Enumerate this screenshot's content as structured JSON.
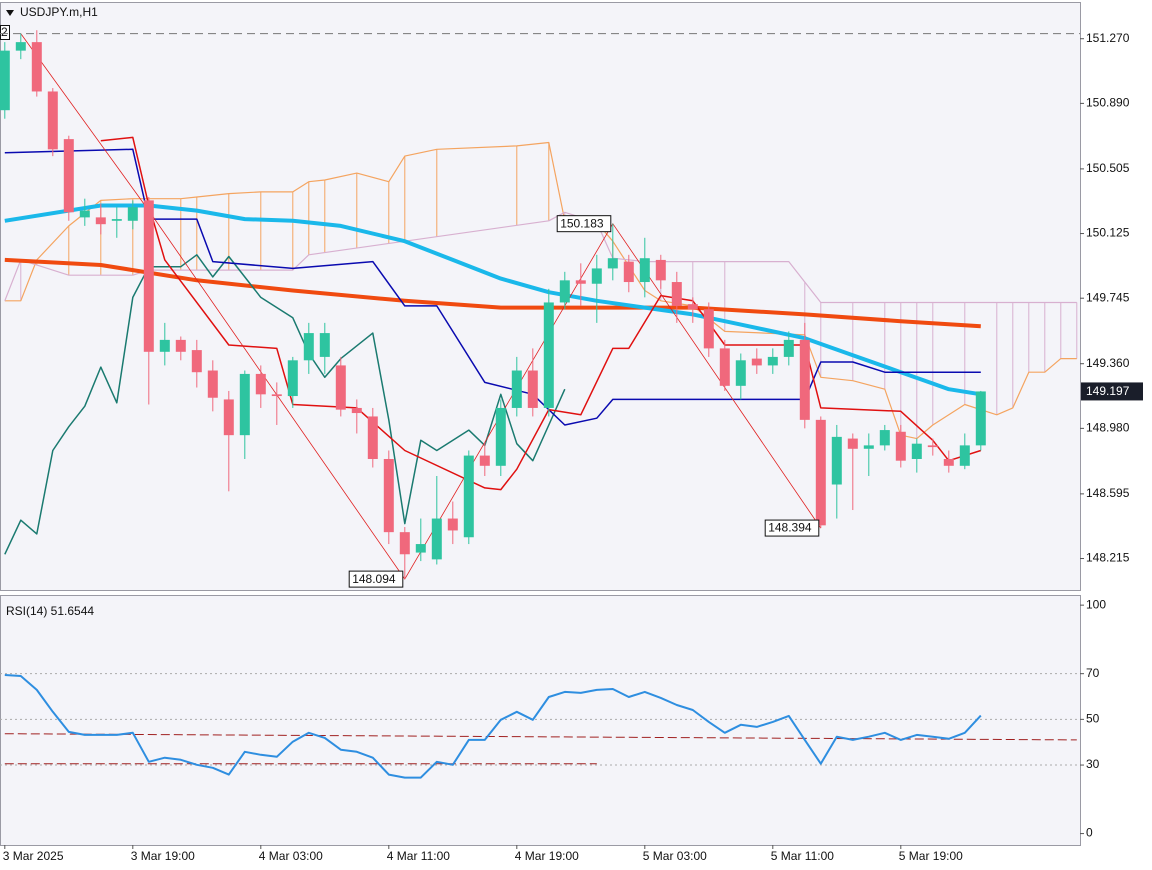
{
  "chart_data": [
    {
      "type": "candlestick",
      "title": "USDJPY.m,H1",
      "annotation": "2",
      "x": [
        0,
        1,
        2,
        3,
        4,
        5,
        6,
        7,
        8,
        9,
        10,
        11,
        12,
        13,
        14,
        15,
        16,
        17,
        18,
        19,
        20,
        21,
        22,
        23,
        24,
        25,
        26,
        27,
        28,
        29,
        30,
        31,
        32,
        33,
        34,
        35,
        36,
        37,
        38,
        39,
        40,
        41,
        42,
        43,
        44,
        45,
        46,
        47,
        48,
        49,
        50,
        51,
        52,
        53,
        54,
        55,
        56,
        57,
        58,
        59,
        60,
        61
      ],
      "open": [
        150.85,
        151.2,
        151.25,
        150.96,
        150.68,
        150.22,
        150.22,
        150.2,
        150.2,
        150.32,
        149.43,
        149.5,
        149.44,
        149.32,
        149.15,
        148.94,
        149.3,
        149.18,
        149.17,
        149.38,
        149.4,
        149.35,
        149.1,
        149.05,
        148.8,
        148.37,
        148.25,
        148.21,
        148.45,
        148.34,
        148.82,
        148.76,
        149.1,
        149.32,
        149.1,
        149.72,
        149.85,
        149.83,
        149.92,
        149.96,
        149.84,
        149.97,
        149.84,
        149.71,
        149.68,
        149.45,
        149.23,
        149.39,
        149.35,
        149.4,
        149.5,
        149.03,
        148.65,
        148.92,
        148.86,
        148.88,
        148.96,
        148.8,
        148.88,
        148.8,
        148.76,
        148.88
      ],
      "high": [
        151.25,
        151.3,
        151.32,
        150.98,
        150.7,
        150.33,
        150.3,
        150.28,
        150.32,
        150.34,
        149.6,
        149.52,
        149.5,
        149.38,
        149.2,
        149.32,
        149.35,
        149.25,
        149.4,
        149.6,
        149.6,
        149.4,
        149.15,
        149.1,
        148.85,
        148.4,
        148.45,
        148.7,
        148.55,
        148.85,
        148.9,
        149.15,
        149.4,
        149.45,
        149.8,
        149.9,
        149.95,
        150.0,
        150.183,
        150.0,
        150.1,
        150.0,
        149.9,
        149.75,
        149.72,
        149.5,
        149.42,
        149.45,
        149.45,
        149.55,
        149.6,
        149.05,
        149.0,
        148.95,
        148.95,
        149.0,
        149.0,
        148.92,
        148.92,
        148.85,
        148.95,
        149.2
      ],
      "low": [
        150.8,
        151.15,
        150.93,
        150.58,
        150.2,
        150.17,
        150.12,
        150.1,
        150.15,
        149.12,
        149.35,
        149.38,
        149.22,
        149.08,
        148.61,
        148.8,
        149.1,
        149.0,
        149.1,
        149.3,
        149.3,
        149.05,
        148.95,
        148.75,
        148.3,
        148.094,
        148.2,
        148.18,
        148.3,
        148.3,
        148.7,
        148.7,
        149.05,
        149.05,
        149.05,
        149.68,
        149.7,
        149.6,
        149.85,
        149.78,
        149.75,
        149.8,
        149.6,
        149.6,
        149.4,
        149.2,
        149.15,
        149.3,
        149.3,
        149.35,
        148.98,
        148.394,
        148.45,
        148.5,
        148.7,
        148.85,
        148.75,
        148.72,
        148.82,
        148.72,
        148.74,
        148.85
      ],
      "close": [
        151.2,
        151.25,
        150.96,
        150.62,
        150.25,
        150.26,
        150.18,
        150.21,
        150.28,
        149.43,
        149.5,
        149.43,
        149.31,
        149.16,
        148.94,
        149.3,
        149.18,
        149.17,
        149.38,
        149.54,
        149.54,
        149.09,
        149.07,
        148.8,
        148.37,
        148.24,
        148.3,
        148.45,
        148.38,
        148.82,
        148.76,
        149.1,
        149.32,
        149.1,
        149.72,
        149.85,
        149.83,
        149.92,
        149.98,
        149.84,
        149.98,
        149.85,
        149.7,
        149.68,
        149.45,
        149.23,
        149.38,
        149.35,
        149.4,
        149.5,
        149.03,
        148.41,
        148.93,
        148.86,
        148.88,
        148.97,
        148.79,
        148.89,
        148.87,
        148.76,
        148.88,
        149.197
      ],
      "up_color": "#2ec4a0",
      "down_color": "#f0687c",
      "xlim": [
        -0.3,
        67.2
      ],
      "ylim": [
        148.03,
        151.48
      ],
      "yticks": [
        {
          "value": 151.27,
          "label": "151.270"
        },
        {
          "value": 150.89,
          "label": "150.890"
        },
        150.505,
        150.125,
        149.745,
        {
          "value": 149.36,
          "label": "149.360"
        },
        {
          "value": 148.98,
          "label": "148.980"
        },
        148.595,
        148.215
      ],
      "current_price": 149.197,
      "level_line": 151.3,
      "cloud_fill": true,
      "series": [
        {
          "color": "#f4a460",
          "x": [
            0,
            1,
            2,
            4,
            6,
            8,
            9,
            11,
            12,
            14,
            16,
            18,
            19,
            20,
            22,
            24,
            25,
            27,
            32,
            34,
            35,
            37,
            38,
            40,
            41,
            43,
            45,
            50,
            51,
            53,
            55,
            56,
            57,
            58,
            60,
            62,
            63,
            64,
            65,
            66,
            67
          ],
          "values": [
            149.73,
            149.73,
            149.97,
            150.17,
            150.32,
            150.33,
            150.33,
            150.33,
            150.34,
            150.36,
            150.37,
            150.37,
            150.43,
            150.44,
            150.48,
            150.43,
            150.58,
            150.62,
            150.64,
            150.66,
            150.2,
            150.19,
            150.08,
            149.79,
            149.73,
            149.7,
            149.55,
            149.53,
            149.28,
            149.26,
            149.21,
            148.94,
            148.92,
            149.0,
            149.12,
            149.06,
            149.1,
            149.31,
            149.31,
            149.39,
            149.39
          ]
        },
        {
          "color": "#d8b0d0",
          "x": [
            0,
            1,
            4,
            8,
            9,
            18,
            19,
            34,
            35,
            37,
            38,
            40,
            49,
            51,
            67
          ],
          "values": [
            149.73,
            149.97,
            149.88,
            149.88,
            149.91,
            149.91,
            150.0,
            150.2,
            150.25,
            150.19,
            149.98,
            149.96,
            149.96,
            149.72,
            149.72
          ]
        },
        {
          "color": "#f04a10",
          "x": [
            0,
            6,
            12,
            18,
            25,
            31,
            37,
            43,
            50,
            56,
            61
          ],
          "values": [
            149.97,
            149.94,
            149.85,
            149.79,
            149.73,
            149.69,
            149.69,
            149.69,
            149.65,
            149.61,
            149.58
          ]
        },
        {
          "color": "#1ab8ea",
          "x": [
            0,
            6,
            9,
            12,
            15,
            18,
            21,
            25,
            28,
            31,
            34,
            37,
            40,
            43,
            46,
            50,
            53,
            56,
            59,
            61
          ],
          "values": [
            150.2,
            150.29,
            150.29,
            150.26,
            150.21,
            150.2,
            150.17,
            150.08,
            149.97,
            149.86,
            149.78,
            149.73,
            149.69,
            149.65,
            149.59,
            149.51,
            149.41,
            149.31,
            149.21,
            149.18
          ]
        },
        {
          "color": "#1a7a70",
          "x": [
            0,
            1,
            2,
            3,
            4,
            5,
            6,
            7,
            8,
            9,
            11,
            12,
            13,
            14,
            16,
            18,
            19,
            20,
            21,
            23,
            24,
            25,
            26,
            27,
            29,
            30,
            31,
            32,
            33,
            34,
            35
          ],
          "values": [
            148.24,
            148.44,
            148.36,
            148.85,
            148.99,
            149.11,
            149.34,
            149.13,
            149.75,
            149.93,
            149.93,
            150.0,
            149.87,
            149.99,
            149.75,
            149.63,
            149.42,
            149.28,
            149.39,
            149.54,
            149.03,
            148.42,
            148.91,
            148.85,
            148.97,
            148.88,
            149.18,
            148.89,
            148.79,
            149.0,
            149.21
          ]
        },
        {
          "color": "#0a0ab0",
          "x": [
            0,
            8,
            9,
            12,
            13,
            18,
            23,
            25,
            27,
            30,
            33,
            35,
            37,
            38,
            50,
            51,
            53,
            55,
            61
          ],
          "values": [
            150.6,
            150.62,
            150.21,
            150.21,
            149.96,
            149.92,
            149.96,
            149.7,
            149.7,
            149.25,
            149.18,
            149.0,
            149.04,
            149.15,
            149.15,
            149.37,
            149.37,
            149.31,
            149.31
          ]
        },
        {
          "color": "#e01010",
          "x": [
            6,
            8,
            9,
            10,
            14,
            17,
            18,
            22,
            25,
            30,
            31,
            32,
            34,
            36,
            38,
            39,
            41,
            43,
            45,
            50,
            51,
            56,
            58,
            59,
            61
          ],
          "values": [
            150.67,
            150.69,
            150.29,
            149.97,
            149.47,
            149.45,
            149.12,
            149.1,
            148.85,
            148.63,
            148.62,
            148.74,
            149.09,
            149.06,
            149.45,
            149.45,
            149.76,
            149.73,
            149.47,
            149.47,
            149.1,
            149.08,
            148.91,
            148.79,
            148.85
          ]
        }
      ],
      "zigzag": {
        "color": "#e02020",
        "x": [
          1,
          9,
          25,
          38,
          51
        ],
        "values": [
          151.3,
          150.26,
          148.094,
          150.183,
          148.394
        ],
        "value_labels": [
          null,
          null,
          "148.094",
          "150.183",
          "148.394"
        ]
      }
    },
    {
      "type": "line",
      "title": "RSI(14) 51.6544",
      "color": "#2e8ee0",
      "x": [
        0,
        1,
        2,
        3,
        4,
        5,
        6,
        7,
        8,
        9,
        10,
        11,
        12,
        13,
        14,
        15,
        16,
        17,
        18,
        19,
        20,
        21,
        22,
        23,
        24,
        25,
        26,
        27,
        28,
        29,
        30,
        31,
        32,
        33,
        34,
        35,
        36,
        37,
        38,
        39,
        40,
        41,
        42,
        43,
        44,
        45,
        46,
        47,
        48,
        49,
        50,
        51,
        52,
        53,
        54,
        55,
        56,
        57,
        58,
        59,
        60,
        61
      ],
      "values": [
        69.4,
        69.0,
        62.9,
        53.3,
        44.5,
        43.2,
        43.2,
        43.2,
        44.1,
        31.4,
        33.2,
        32.3,
        30.1,
        28.8,
        25.8,
        35.8,
        34.5,
        33.6,
        40.2,
        44.1,
        41.9,
        36.7,
        35.8,
        33.2,
        25.8,
        24.5,
        24.5,
        31.4,
        30.1,
        41.0,
        41.0,
        49.8,
        53.3,
        49.8,
        59.8,
        62.0,
        61.6,
        62.9,
        63.3,
        59.8,
        62.0,
        59.4,
        56.3,
        54.1,
        48.9,
        44.1,
        47.6,
        46.7,
        48.9,
        51.5,
        41.0,
        30.6,
        42.4,
        41.0,
        42.4,
        44.1,
        41.0,
        43.2,
        42.4,
        41.5,
        44.1,
        51.65
      ],
      "xlim": [
        -0.3,
        67.2
      ],
      "ylim": [
        -5,
        104
      ],
      "yticks": [
        0,
        30,
        50,
        70,
        100
      ],
      "levels": [
        30,
        50,
        70
      ],
      "xticks": [
        {
          "value": 0,
          "label": "3 Mar 2025"
        },
        {
          "value": 8,
          "label": "3 Mar 19:00"
        },
        {
          "value": 16,
          "label": "4 Mar 03:00"
        },
        {
          "value": 24,
          "label": "4 Mar 11:00"
        },
        {
          "value": 32,
          "label": "4 Mar 19:00"
        },
        {
          "value": 40,
          "label": "5 Mar 03:00"
        },
        {
          "value": 48,
          "label": "5 Mar 11:00"
        },
        {
          "value": 56,
          "label": "5 Mar 19:00"
        }
      ],
      "trendlines": [
        {
          "color": "#a02020",
          "x": [
            0,
            67
          ],
          "values": [
            43.7,
            41.0
          ]
        },
        {
          "color": "#a02020",
          "x": [
            0,
            37
          ],
          "values": [
            30.6,
            30.6
          ]
        }
      ]
    }
  ]
}
